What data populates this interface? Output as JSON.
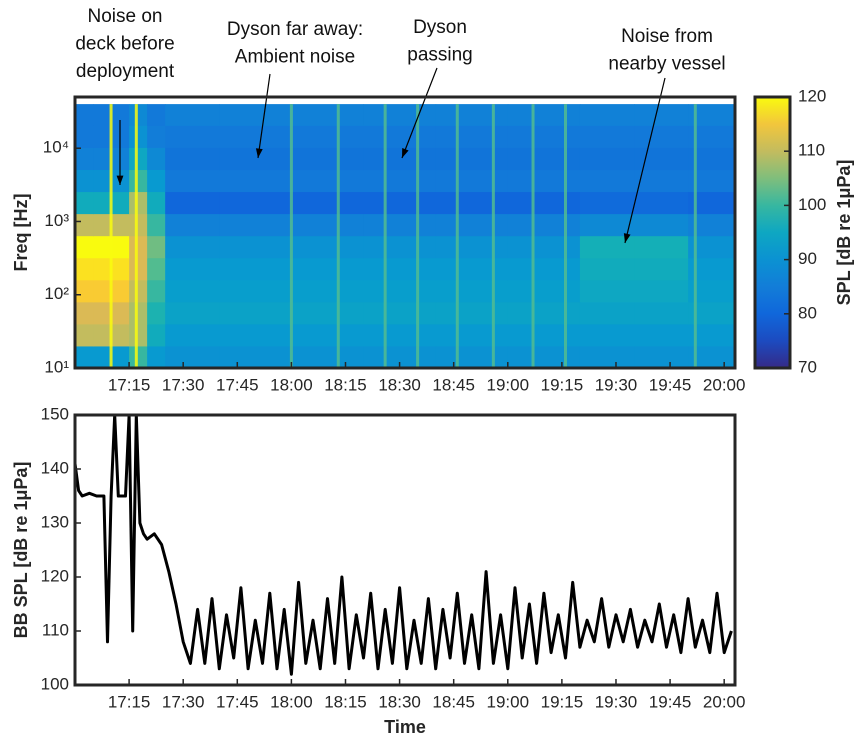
{
  "chart_data": [
    {
      "type": "heatmap",
      "ylabel": "Freq [Hz]",
      "log_y": true,
      "colormap": "parula",
      "xlim": [
        1020,
        1203
      ],
      "ylim": [
        10,
        50000
      ],
      "xticks": [
        {
          "value": 1035,
          "label": "17:15"
        },
        {
          "value": 1050,
          "label": "17:30"
        },
        {
          "value": 1065,
          "label": "17:45"
        },
        {
          "value": 1080,
          "label": "18:00"
        },
        {
          "value": 1095,
          "label": "18:15"
        },
        {
          "value": 1110,
          "label": "18:30"
        },
        {
          "value": 1125,
          "label": "18:45"
        },
        {
          "value": 1140,
          "label": "19:00"
        },
        {
          "value": 1155,
          "label": "19:15"
        },
        {
          "value": 1170,
          "label": "19:30"
        },
        {
          "value": 1185,
          "label": "19:45"
        },
        {
          "value": 1200,
          "label": "20:00"
        }
      ],
      "yticks": [
        {
          "value": 10,
          "label": "10¹"
        },
        {
          "value": 100,
          "label": "10²"
        },
        {
          "value": 1000,
          "label": "10³"
        },
        {
          "value": 10000,
          "label": "10⁴"
        }
      ],
      "x_edges": [
        1020,
        1025,
        1030,
        1035,
        1040,
        1045,
        1060,
        1080,
        1100,
        1120,
        1140,
        1160,
        1175,
        1190,
        1203
      ],
      "y_edges": [
        10,
        20,
        40,
        80,
        160,
        320,
        640,
        1280,
        2560,
        5120,
        10240,
        20480,
        40000
      ],
      "values": [
        [
          92,
          92,
          92,
          100,
          92,
          90,
          90,
          90,
          90,
          90,
          90,
          90,
          90,
          90
        ],
        [
          110,
          110,
          110,
          108,
          96,
          92,
          92,
          92,
          92,
          92,
          92,
          92,
          92,
          92
        ],
        [
          112,
          112,
          112,
          108,
          98,
          94,
          94,
          94,
          94,
          94,
          94,
          94,
          94,
          94
        ],
        [
          116,
          116,
          116,
          110,
          100,
          93,
          93,
          93,
          93,
          93,
          93,
          95,
          95,
          93
        ],
        [
          118,
          118,
          118,
          112,
          102,
          92,
          92,
          92,
          92,
          92,
          92,
          96,
          96,
          92
        ],
        [
          120,
          120,
          120,
          112,
          104,
          90,
          90,
          90,
          90,
          90,
          90,
          97,
          97,
          90
        ],
        [
          110,
          110,
          110,
          110,
          100,
          86,
          86,
          86,
          86,
          86,
          86,
          88,
          88,
          86
        ],
        [
          96,
          96,
          96,
          108,
          96,
          80,
          80,
          80,
          80,
          80,
          80,
          81,
          81,
          80
        ],
        [
          90,
          90,
          90,
          100,
          92,
          84,
          84,
          84,
          84,
          84,
          84,
          84,
          84,
          84
        ],
        [
          86,
          86,
          86,
          95,
          88,
          83,
          83,
          83,
          83,
          83,
          83,
          83,
          83,
          83
        ],
        [
          84,
          84,
          84,
          90,
          85,
          84,
          84,
          84,
          84,
          84,
          84,
          84,
          84,
          84
        ],
        [
          84,
          84,
          84,
          88,
          84,
          86,
          86,
          86,
          86,
          86,
          86,
          86,
          86,
          86
        ]
      ],
      "events": {
        "x": [
          1030,
          1037,
          1080,
          1093,
          1106,
          1115,
          1126,
          1136,
          1147,
          1156,
          1192
        ],
        "values": [
          120,
          120,
          102,
          102,
          102,
          102,
          102,
          102,
          102,
          102,
          102
        ]
      },
      "colorbar": {
        "label": "SPL [dB re 1μPa]",
        "clim": [
          70,
          120
        ],
        "ticks": [
          70,
          80,
          90,
          100,
          110,
          120
        ]
      },
      "annotations": [
        {
          "lines": [
            "Noise on",
            "deck before",
            "deployment"
          ]
        },
        {
          "lines": [
            "Dyson far away:",
            "Ambient noise"
          ]
        },
        {
          "lines": [
            "Dyson",
            "passing"
          ]
        },
        {
          "lines": [
            "Noise from",
            "nearby vessel"
          ]
        }
      ]
    },
    {
      "type": "line",
      "xlabel": "Time",
      "ylabel": "BB SPL [dB re 1μPa]",
      "color": "#000000",
      "xlim": [
        1020,
        1203
      ],
      "ylim": [
        100,
        150
      ],
      "xticks": [
        {
          "value": 1035,
          "label": "17:15"
        },
        {
          "value": 1050,
          "label": "17:30"
        },
        {
          "value": 1065,
          "label": "17:45"
        },
        {
          "value": 1080,
          "label": "18:00"
        },
        {
          "value": 1095,
          "label": "18:15"
        },
        {
          "value": 1110,
          "label": "18:30"
        },
        {
          "value": 1125,
          "label": "18:45"
        },
        {
          "value": 1140,
          "label": "19:00"
        },
        {
          "value": 1155,
          "label": "19:15"
        },
        {
          "value": 1170,
          "label": "19:30"
        },
        {
          "value": 1185,
          "label": "19:45"
        },
        {
          "value": 1200,
          "label": "20:00"
        }
      ],
      "yticks": [
        100,
        110,
        120,
        130,
        140,
        150
      ],
      "x": [
        1020,
        1021,
        1022,
        1024,
        1026,
        1028,
        1029,
        1030,
        1031,
        1032,
        1034,
        1035,
        1036,
        1037,
        1038,
        1039,
        1040,
        1042,
        1044,
        1046,
        1048,
        1050,
        1052,
        1054,
        1056,
        1058,
        1060,
        1062,
        1064,
        1066,
        1068,
        1070,
        1072,
        1074,
        1076,
        1078,
        1080,
        1082,
        1084,
        1086,
        1088,
        1090,
        1092,
        1094,
        1096,
        1098,
        1100,
        1102,
        1104,
        1106,
        1108,
        1110,
        1112,
        1114,
        1116,
        1118,
        1120,
        1122,
        1124,
        1126,
        1128,
        1130,
        1132,
        1134,
        1136,
        1138,
        1140,
        1142,
        1144,
        1146,
        1148,
        1150,
        1152,
        1154,
        1156,
        1158,
        1160,
        1162,
        1164,
        1166,
        1168,
        1170,
        1172,
        1174,
        1176,
        1178,
        1180,
        1182,
        1184,
        1186,
        1188,
        1190,
        1192,
        1194,
        1196,
        1198,
        1200,
        1202
      ],
      "values": [
        141,
        136,
        135,
        135.5,
        135,
        135,
        108,
        135,
        150,
        135,
        135,
        150,
        110,
        150,
        130,
        128,
        127,
        128,
        126,
        121,
        115,
        108,
        104,
        114,
        104,
        116,
        103,
        113,
        105,
        118,
        103,
        112,
        104,
        117,
        103,
        114,
        102,
        119,
        104,
        112,
        103,
        116,
        104,
        120,
        103,
        113,
        105,
        117,
        103,
        114,
        104,
        118,
        103,
        112,
        104,
        116,
        103,
        114,
        105,
        117,
        104,
        113,
        103,
        121,
        104,
        113,
        103,
        118,
        105,
        115,
        104,
        117,
        106,
        113,
        105,
        119,
        107,
        112,
        108,
        116,
        107,
        113,
        108,
        114,
        107,
        112,
        108,
        115,
        107,
        113,
        106,
        116,
        107,
        112,
        106,
        117,
        106,
        110
      ]
    }
  ]
}
